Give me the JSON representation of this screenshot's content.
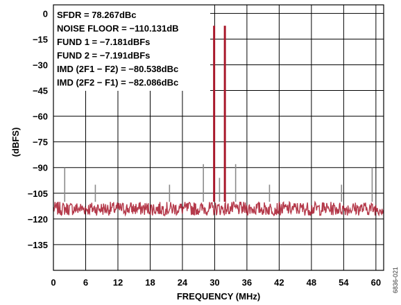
{
  "chart_data": {
    "type": "line",
    "title": "",
    "xlabel": "FREQUENCY (MHz)",
    "ylabel": "(dBFS)",
    "xlim": [
      0,
      61.44
    ],
    "ylim": [
      -150,
      5
    ],
    "xticks": [
      "0",
      "6",
      "12",
      "18",
      "24",
      "30",
      "36",
      "42",
      "48",
      "54",
      "60"
    ],
    "yticks": [
      "0",
      "−15",
      "−30",
      "−45",
      "−60",
      "−75",
      "−90",
      "−105",
      "−120",
      "−135"
    ],
    "grid": true,
    "annotations": [
      "SFDR = 78.267dBc",
      "NOISE FLOOR = −110.131dB",
      "FUND 1 = −7.181dBFs",
      "FUND 2 = −7.191dBFs",
      "IMD (2F1 − F2) = −80.538dBc",
      "IMD (2F2 − F1) = −82.086dBc"
    ],
    "figure_id": "6836-021",
    "noise_floor_band": [
      -118,
      -110
    ],
    "series": [
      {
        "color": "#a8182b",
        "peaks": [
          {
            "x": 29.9,
            "y": -7.2
          },
          {
            "x": 31.9,
            "y": -7.2
          },
          {
            "x": 27.9,
            "y": -88
          },
          {
            "x": 33.9,
            "y": -88
          },
          {
            "x": 2.1,
            "y": -90
          },
          {
            "x": 59.3,
            "y": -90
          },
          {
            "x": 30.9,
            "y": -96
          },
          {
            "x": 7.8,
            "y": -100
          },
          {
            "x": 21.6,
            "y": -100
          },
          {
            "x": 40.2,
            "y": -100
          },
          {
            "x": 53.6,
            "y": -100
          }
        ]
      }
    ]
  }
}
